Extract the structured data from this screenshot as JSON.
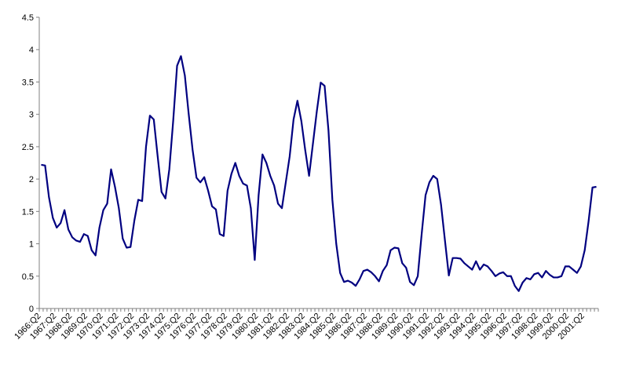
{
  "chart_data": {
    "type": "line",
    "title": "",
    "xlabel": "",
    "ylabel": "",
    "ylim": [
      0,
      4.5
    ],
    "y_ticks": [
      0,
      0.5,
      1,
      1.5,
      2,
      2.5,
      3,
      3.5,
      4,
      4.5
    ],
    "y_tick_labels": [
      "0",
      "0.5",
      "1",
      "1.5",
      "2",
      "2.5",
      "3",
      "3.5",
      "4",
      "4.5"
    ],
    "x_tick_labels": [
      "1966:Q2",
      "1967:Q2",
      "1968:Q2",
      "1969:Q2",
      "1970:Q2",
      "1971:Q2",
      "1972:Q2",
      "1973:Q2",
      "1974:Q2",
      "1975:Q2",
      "1976:Q2",
      "1977:Q2",
      "1978:Q2",
      "1979:Q2",
      "1980:Q2",
      "1981:Q2",
      "1982:Q2",
      "1983:Q2",
      "1984:Q2",
      "1985:Q2",
      "1986:Q2",
      "1987:Q2",
      "1988:Q2",
      "1989:Q2",
      "1990:Q2",
      "1991:Q2",
      "1992:Q2",
      "1993:Q2",
      "1994:Q2",
      "1995:Q2",
      "1996:Q2",
      "1997:Q2",
      "1998:Q2",
      "1999:Q2",
      "2000:Q2",
      "2001:Q2"
    ],
    "grid": false,
    "legend": false,
    "line_color": "#000080",
    "axis_color": "#808080",
    "series": [
      {
        "values": [
          2.22,
          2.21,
          1.72,
          1.4,
          1.25,
          1.32,
          1.52,
          1.22,
          1.1,
          1.05,
          1.03,
          1.15,
          1.12,
          0.9,
          0.82,
          1.25,
          1.52,
          1.62,
          2.15,
          1.88,
          1.55,
          1.08,
          0.94,
          0.95,
          1.36,
          1.68,
          1.66,
          2.5,
          2.98,
          2.92,
          2.35,
          1.8,
          1.7,
          2.15,
          2.9,
          3.75,
          3.9,
          3.6,
          3.0,
          2.45,
          2.02,
          1.95,
          2.03,
          1.82,
          1.58,
          1.53,
          1.15,
          1.12,
          1.82,
          2.08,
          2.25,
          2.05,
          1.93,
          1.9,
          1.55,
          0.75,
          1.75,
          2.38,
          2.25,
          2.05,
          1.9,
          1.62,
          1.55,
          1.95,
          2.35,
          2.92,
          3.21,
          2.9,
          2.45,
          2.05,
          2.55,
          3.05,
          3.49,
          3.44,
          2.75,
          1.68,
          1.0,
          0.55,
          0.41,
          0.43,
          0.4,
          0.35,
          0.45,
          0.58,
          0.6,
          0.56,
          0.5,
          0.42,
          0.58,
          0.67,
          0.9,
          0.94,
          0.93,
          0.7,
          0.63,
          0.41,
          0.36,
          0.5,
          1.15,
          1.75,
          1.95,
          2.05,
          2.0,
          1.6,
          1.05,
          0.51,
          0.78,
          0.78,
          0.77,
          0.7,
          0.65,
          0.6,
          0.73,
          0.6,
          0.68,
          0.65,
          0.58,
          0.5,
          0.54,
          0.56,
          0.5,
          0.5,
          0.35,
          0.27,
          0.4,
          0.47,
          0.45,
          0.53,
          0.55,
          0.48,
          0.58,
          0.52,
          0.48,
          0.48,
          0.5,
          0.65,
          0.65,
          0.6,
          0.55,
          0.65,
          0.9,
          1.35,
          1.87,
          1.88
        ]
      }
    ]
  }
}
